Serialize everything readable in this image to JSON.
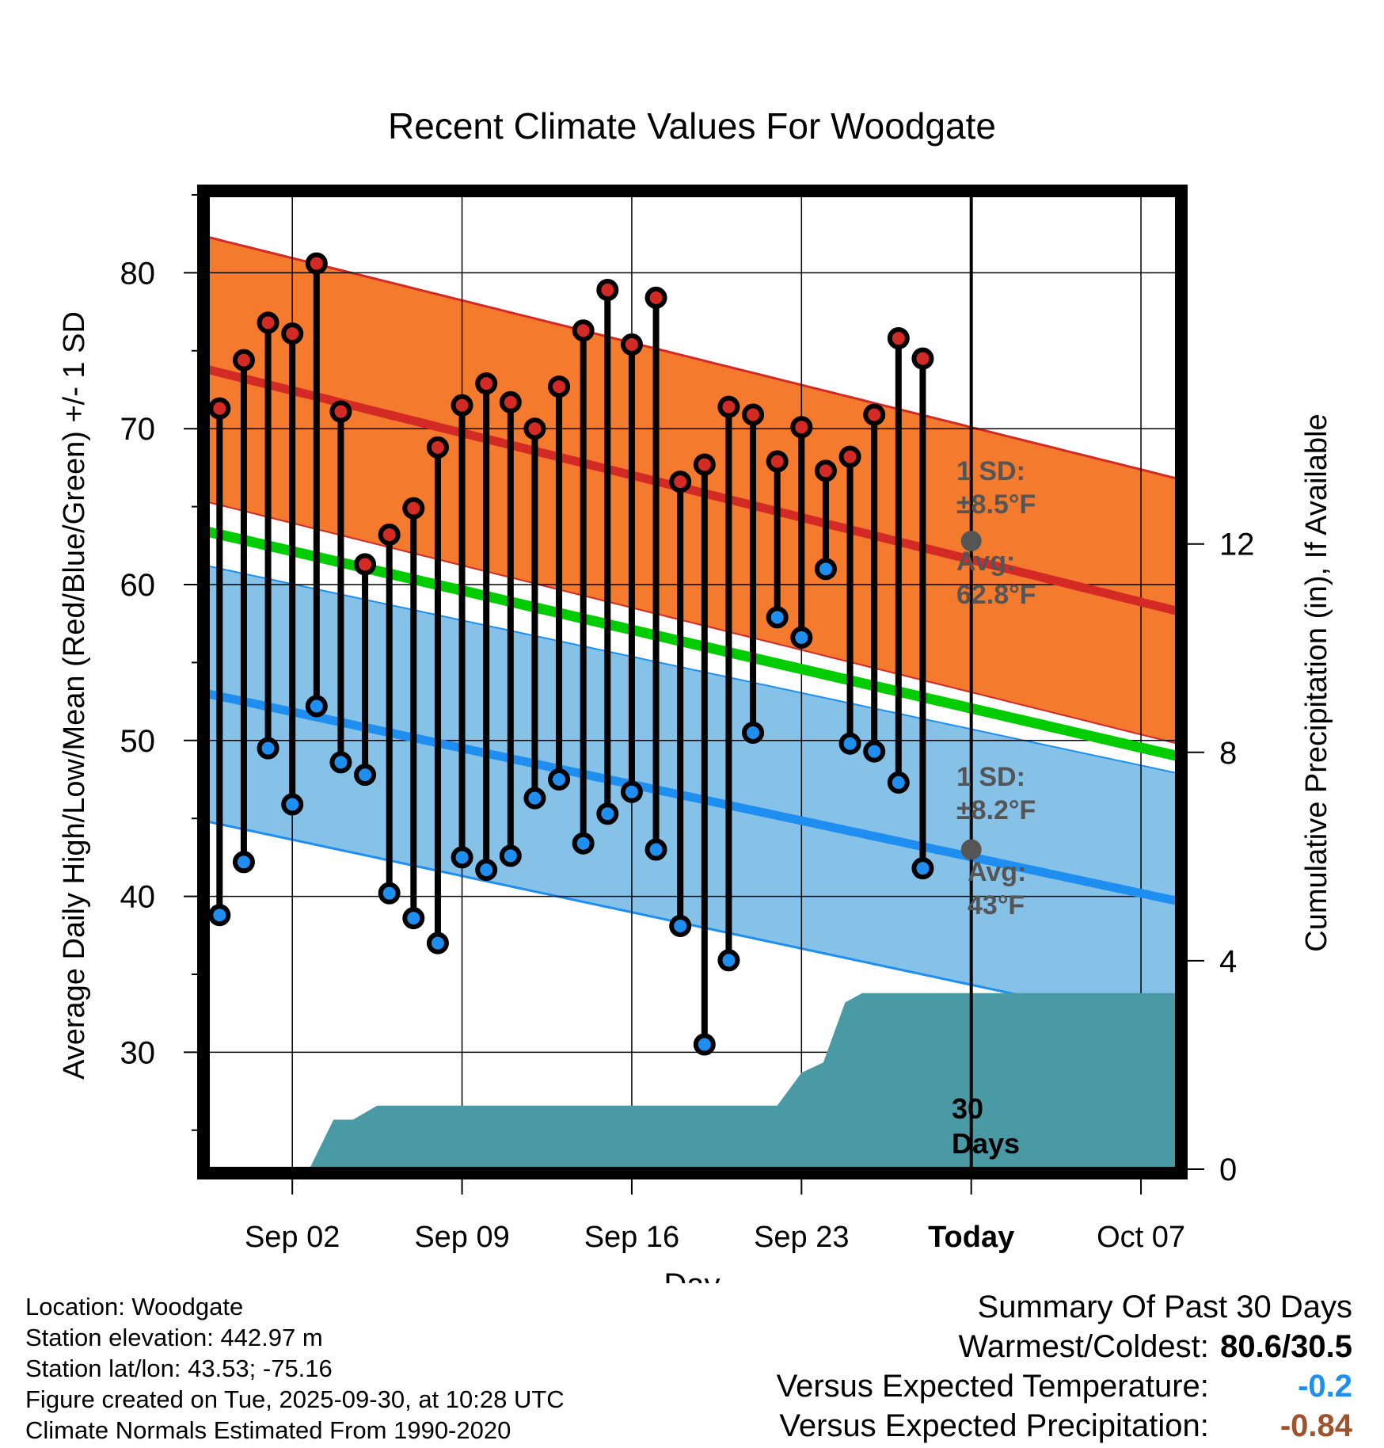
{
  "chart_data": {
    "type": "line",
    "title": "Recent Climate Values For Woodgate",
    "xlabel": "Day",
    "ylabel": "Average Daily High/Low/Mean (Red/Blue/Green) +/- 1 SD",
    "y2label": "Cumulative Precipitation (in), If Available",
    "ylim": [
      22.5,
      85
    ],
    "y2lim": [
      0,
      18.7
    ],
    "xlim": [
      -2.5,
      37.5
    ],
    "y_ticks": [
      30,
      40,
      50,
      60,
      70,
      80
    ],
    "y2_ticks": [
      0,
      4,
      8,
      12
    ],
    "x_ticks": [
      {
        "day": 1,
        "label": "Sep 02"
      },
      {
        "day": 8,
        "label": "Sep 09"
      },
      {
        "day": 15,
        "label": "Sep 16"
      },
      {
        "day": 22,
        "label": "Sep 23"
      },
      {
        "day": 29,
        "label": "Today"
      },
      {
        "day": 36,
        "label": "Oct 07"
      }
    ],
    "today_day": 29,
    "today_label": "30 Days",
    "colors": {
      "high_band": "#f47a2e",
      "high_line": "#d42a26",
      "low_band": "#86c2e8",
      "low_line": "#1e8ff0",
      "mean_line": "#00cc00",
      "precip": "#4a9aa5",
      "annotation": "#555555",
      "dot_high": "#d42a26",
      "dot_low": "#1e8ff0"
    },
    "normals": {
      "day": [
        -2.5,
        0,
        5,
        10,
        15,
        20,
        25,
        29,
        33,
        37.5
      ],
      "high_mean": [
        73.8,
        73.2,
        71.7,
        69.9,
        67.8,
        65.4,
        62.8,
        60.5,
        58.3,
        58.3
      ],
      "low_mean": [
        53.0,
        52.2,
        50.4,
        48.6,
        46.5,
        44.1,
        43.0,
        43.0,
        43.0,
        39.7
      ]
    },
    "high_sd": 8.5,
    "low_sd": 8.2,
    "avg_high_today": 62.8,
    "avg_low_today": 43.0,
    "annotations": {
      "high_sd": [
        "1 SD:",
        "±8.5°F"
      ],
      "high_avg": [
        "Avg:",
        "62.8°F"
      ],
      "low_sd": [
        "1 SD:",
        "±8.2°F"
      ],
      "low_avg": [
        "Avg:",
        "43°F"
      ]
    },
    "observations": {
      "day": [
        -2,
        -1,
        0,
        1,
        2,
        3,
        4,
        5,
        6,
        7,
        8,
        9,
        10,
        11,
        12,
        13,
        14,
        15,
        16,
        17,
        18,
        19,
        20,
        21,
        22,
        23,
        24,
        25,
        26,
        27,
        28
      ],
      "high": [
        71.3,
        74.4,
        76.8,
        76.1,
        80.6,
        71.1,
        61.3,
        63.2,
        64.9,
        68.8,
        71.5,
        72.9,
        71.7,
        70.0,
        72.7,
        76.3,
        78.9,
        75.4,
        78.4,
        66.6,
        67.7,
        71.4,
        70.9,
        67.9,
        70.1,
        67.3,
        68.2,
        70.9,
        75.8,
        74.5,
        null
      ],
      "low": [
        38.8,
        42.2,
        49.5,
        45.9,
        52.2,
        48.6,
        47.8,
        40.2,
        38.6,
        37.0,
        42.5,
        41.7,
        42.6,
        46.3,
        47.5,
        43.4,
        45.3,
        46.7,
        43.0,
        38.1,
        30.5,
        35.9,
        50.5,
        57.9,
        56.6,
        61.0,
        49.8,
        49.3,
        47.3,
        41.8,
        null
      ]
    },
    "precip_cumulative": {
      "day": [
        -2.5,
        1.0,
        1.7,
        2.7,
        3.5,
        4.5,
        20.4,
        21.0,
        22.0,
        22.9,
        23.8,
        24.5,
        25.1,
        26.1,
        27.0,
        28.0,
        29.0,
        37.5
      ],
      "value": [
        0,
        0,
        0,
        0.95,
        0.95,
        1.22,
        1.22,
        1.22,
        1.85,
        2.05,
        3.2,
        3.38,
        3.38,
        3.38,
        3.38,
        3.38,
        3.38,
        3.38
      ]
    }
  },
  "footer": {
    "location": "Location: Woodgate",
    "elevation": "Station elevation: 442.97 m",
    "latlon": "Station lat/lon: 43.53; -75.16",
    "created": "Figure created on Tue, 2025-09-30, at 10:28 UTC",
    "normals": "Climate Normals Estimated From 1990-2020"
  },
  "summary": {
    "title": "Summary Of Past 30 Days",
    "warm_cold_label": "Warmest/Coldest:",
    "warm_cold_value": "80.6/30.5",
    "temp_label": "Versus Expected Temperature:",
    "temp_value": "-0.2",
    "temp_color": "#1e8ff0",
    "precip_label": "Versus Expected Precipitation:",
    "precip_value": "-0.84",
    "precip_color": "#a0522d"
  }
}
